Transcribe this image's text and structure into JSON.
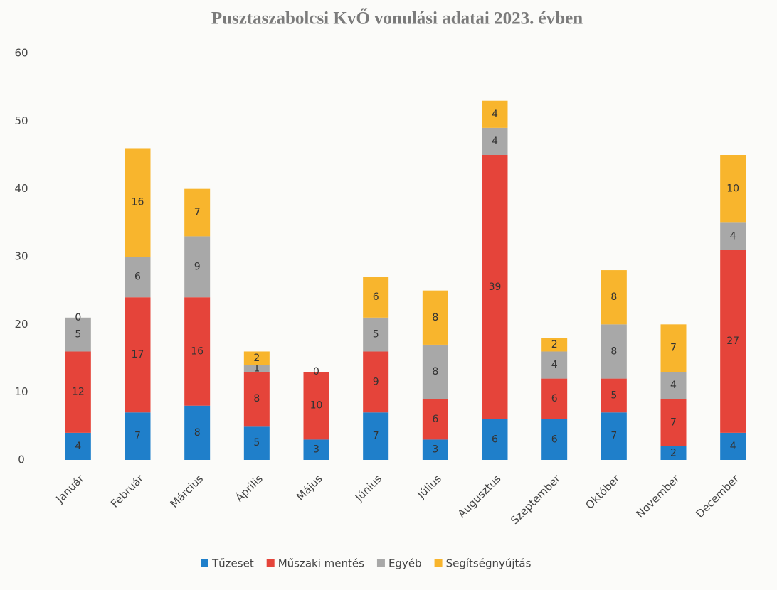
{
  "chart_data": {
    "type": "stacked_bar",
    "title": "Pusztaszabolcsi KvŐ vonulási adatai 2023. évben",
    "categories": [
      "Január",
      "Február",
      "Március",
      "Április",
      "Május",
      "Június",
      "Július",
      "Augusztus",
      "Szeptember",
      "Október",
      "November",
      "December"
    ],
    "series": [
      {
        "name": "Tűzeset",
        "color": "#1f7fca",
        "values": [
          4,
          7,
          8,
          5,
          3,
          7,
          3,
          6,
          6,
          7,
          2,
          4
        ]
      },
      {
        "name": "Műszaki mentés",
        "color": "#e5443a",
        "values": [
          12,
          17,
          16,
          8,
          10,
          9,
          6,
          39,
          6,
          5,
          7,
          27
        ]
      },
      {
        "name": "Egyéb",
        "color": "#a8a8a8",
        "values": [
          5,
          6,
          9,
          1,
          null,
          5,
          8,
          4,
          4,
          8,
          4,
          4
        ]
      },
      {
        "name": "Segítségnyújtás",
        "color": "#f8b52d",
        "values": [
          0,
          16,
          7,
          2,
          0,
          6,
          8,
          4,
          2,
          8,
          7,
          10
        ]
      }
    ],
    "ylim": [
      0,
      60
    ],
    "yticks": [
      0,
      10,
      20,
      30,
      40,
      50,
      60
    ],
    "grid": false,
    "legend": "bottom"
  }
}
